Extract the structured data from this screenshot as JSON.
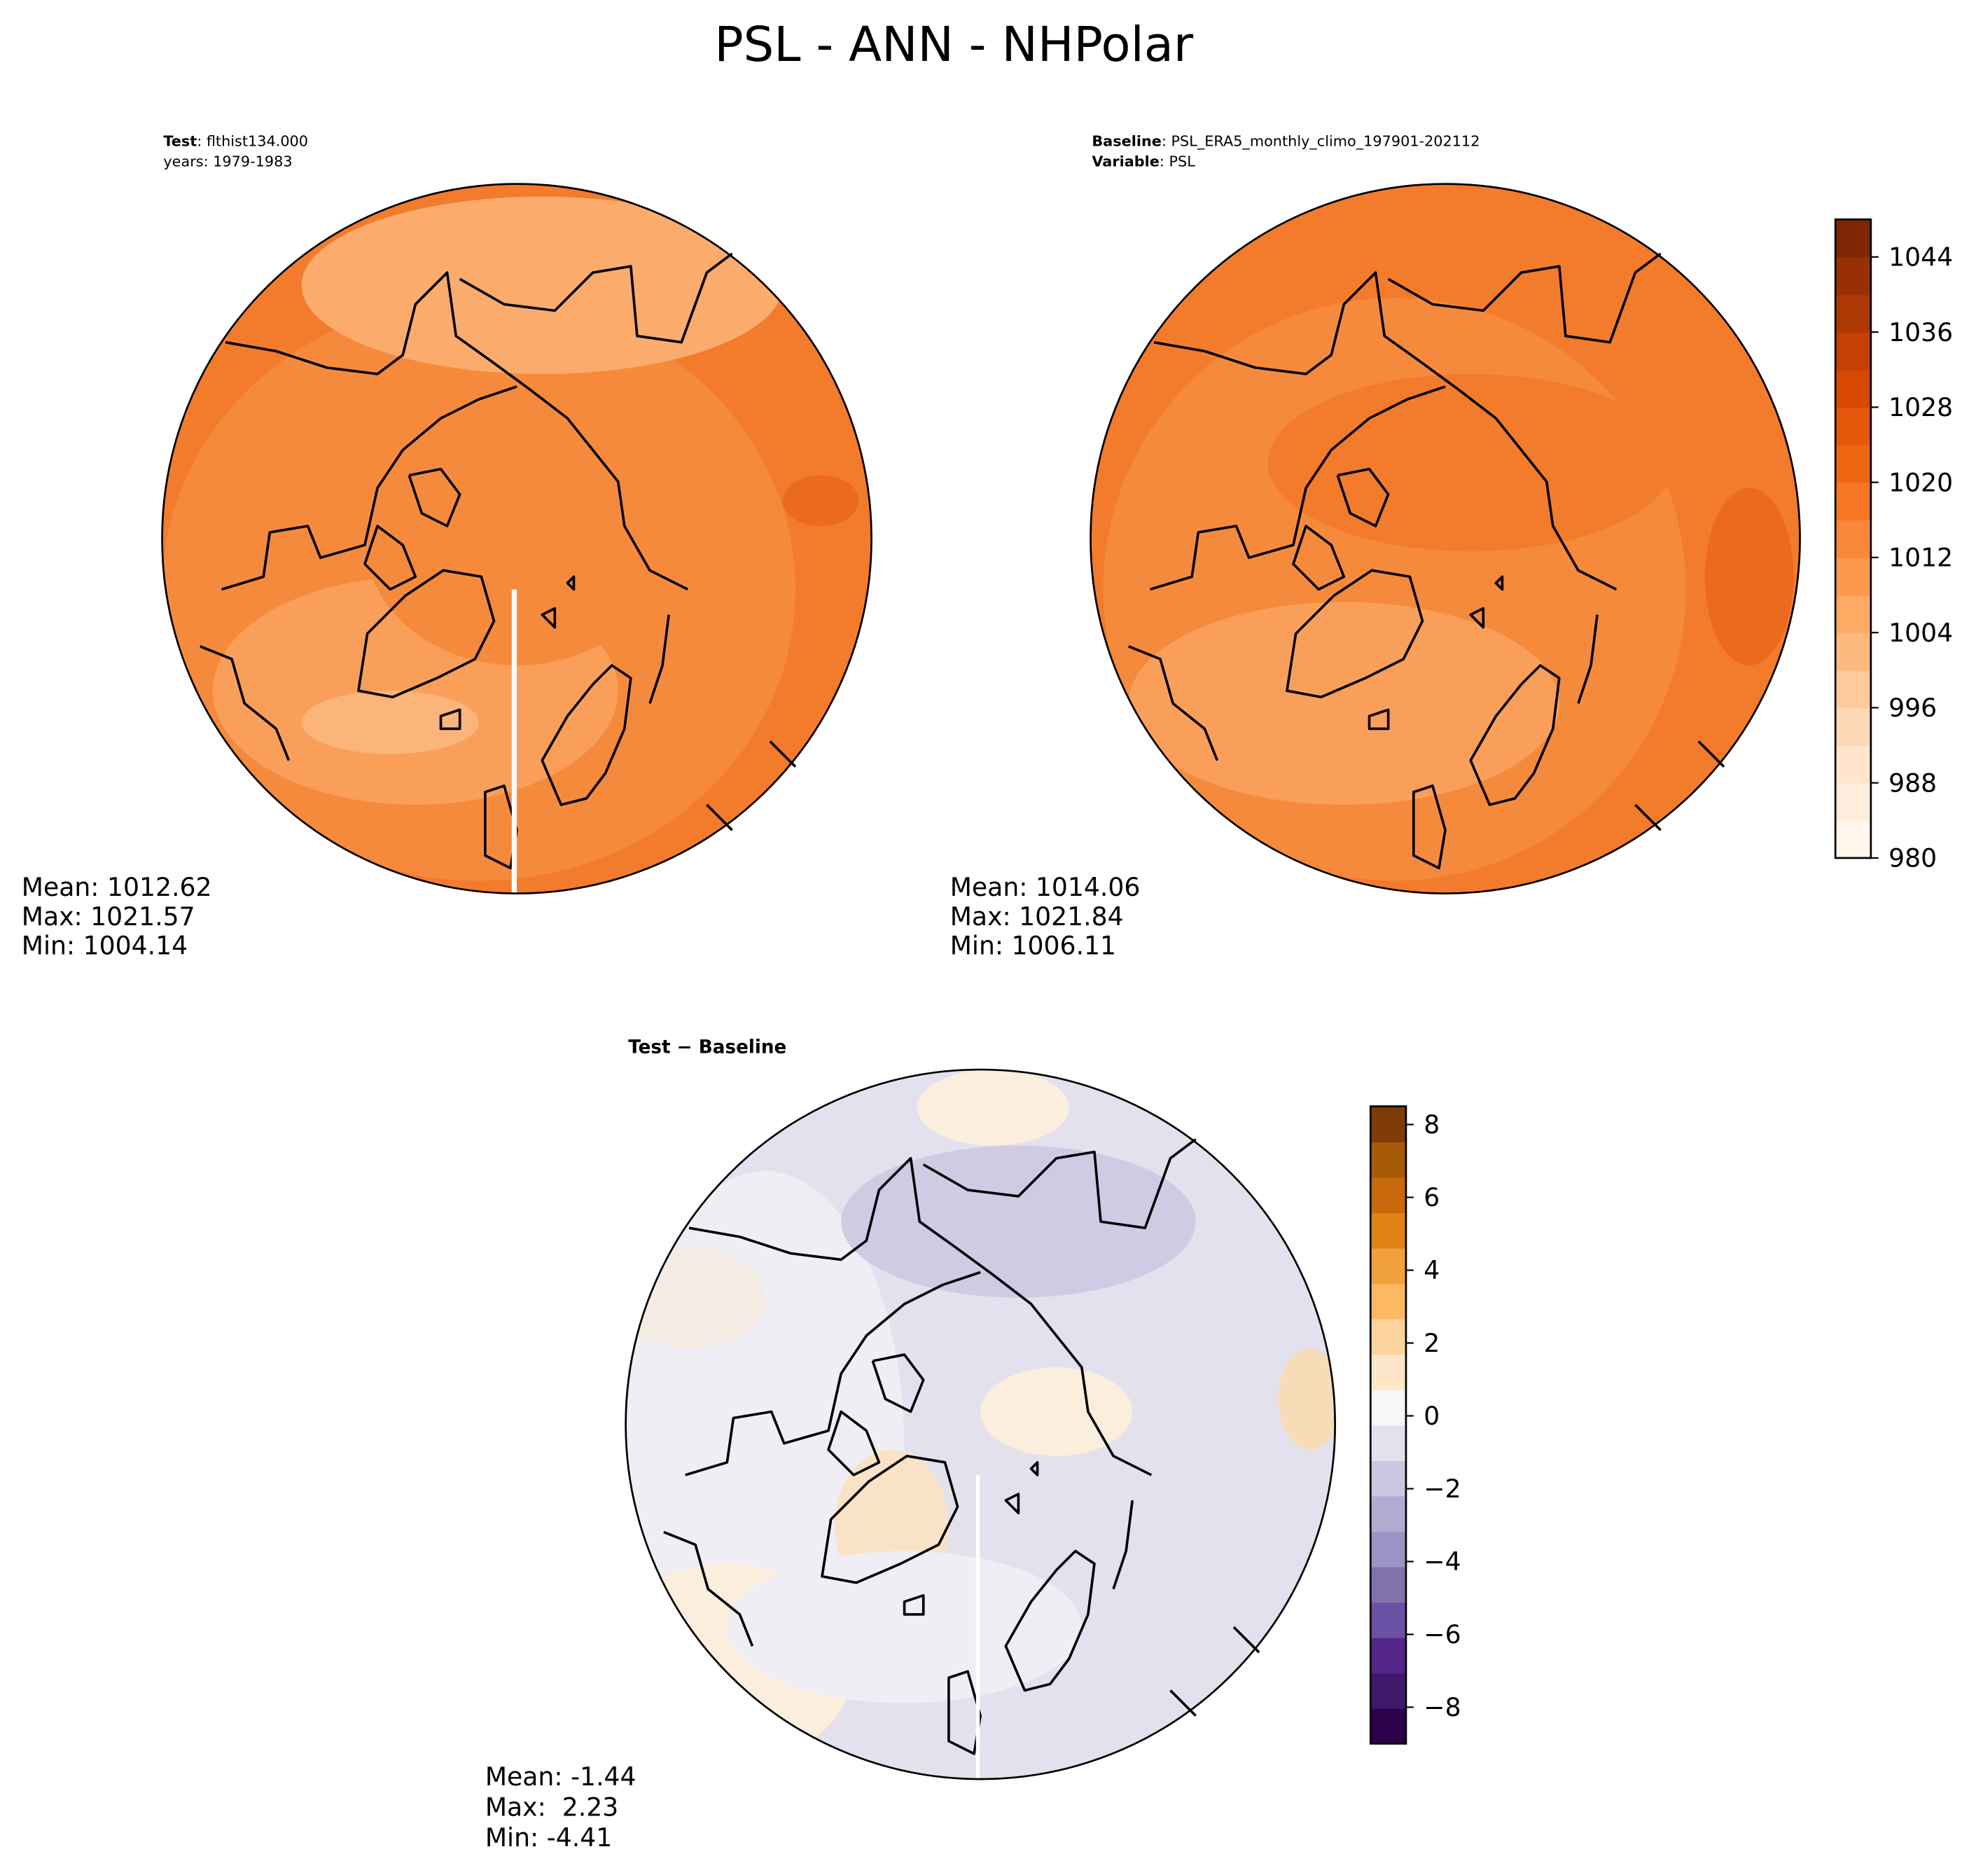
{
  "title": "PSL - ANN - NHPolar",
  "panels": [
    {
      "header_key": "Test",
      "header_value": ": flthist134.000",
      "subheader": "years: 1979-1983",
      "stats": [
        "Mean: 1012.62",
        "Max: 1021.57",
        "Min: 1004.14"
      ]
    },
    {
      "header_key": "Baseline",
      "header_value": ": PSL_ERA5_monthly_climo_197901-202112",
      "subheader_key": "Variable",
      "subheader_value": ": PSL",
      "stats": [
        "Mean: 1014.06",
        "Max: 1021.84",
        "Min: 1006.11"
      ]
    },
    {
      "header_key": "Test − Baseline",
      "stats": [
        "Mean: -1.44",
        "Max:  2.23",
        "Min: -4.41"
      ]
    }
  ],
  "colorbars": [
    {
      "lim": [
        980,
        1048
      ],
      "ticks": [
        980,
        988,
        996,
        1004,
        1012,
        1020,
        1028,
        1036,
        1044
      ],
      "colors": [
        "#fff5eb",
        "#feeddc",
        "#fee5cb",
        "#fdd9b4",
        "#fdcb9b",
        "#fdba7f",
        "#fdaa65",
        "#fd994d",
        "#fb8838",
        "#f67824",
        "#ef6612",
        "#e5580a",
        "#d94801",
        "#c44103",
        "#ad3803",
        "#983004",
        "#7f2704"
      ]
    },
    {
      "lim": [
        -9,
        8.5
      ],
      "ticks": [
        {
          "value": -8,
          "label": "−8"
        },
        {
          "value": -6,
          "label": "−6"
        },
        {
          "value": -4,
          "label": "−4"
        },
        {
          "value": -2,
          "label": "−2"
        },
        0,
        2,
        4,
        6,
        8
      ],
      "colors": [
        "#2d004b",
        "#3f1a6b",
        "#542788",
        "#6a51a3",
        "#8073ac",
        "#9c92c3",
        "#b2abd2",
        "#cbc5e1",
        "#e4e1ef",
        "#f7f7f7",
        "#fde7c8",
        "#fdd49e",
        "#fdb863",
        "#f0a03c",
        "#e08214",
        "#c6690c",
        "#a65b09",
        "#7f3b08"
      ]
    }
  ]
}
